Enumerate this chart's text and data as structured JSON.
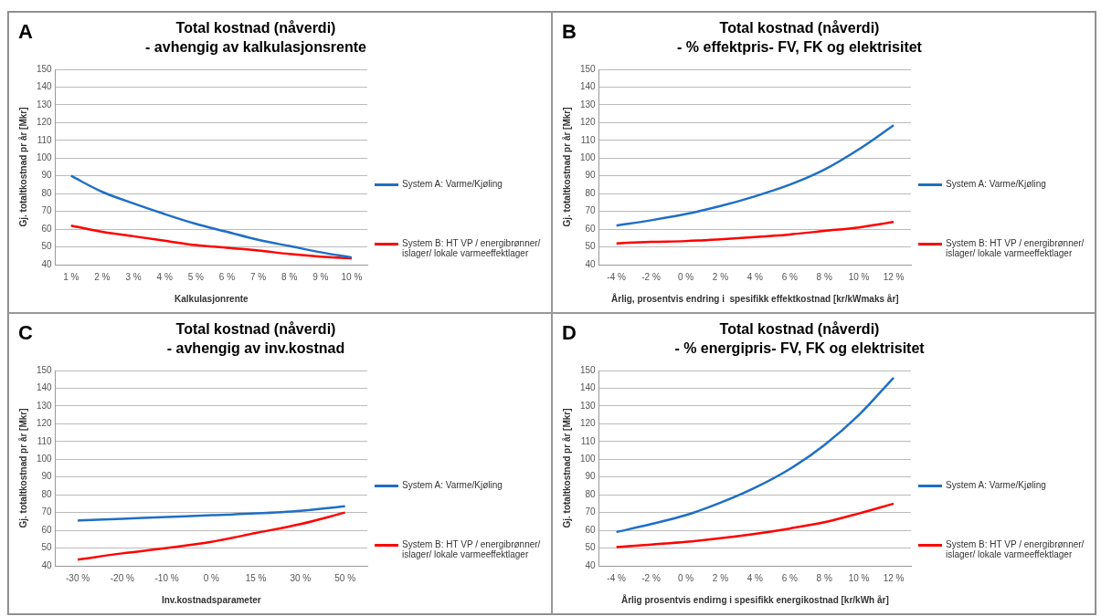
{
  "chart_data": [
    {
      "type": "line",
      "title": "Total kostnad (nåverdi)",
      "subtitle": "- avhengig av kalkulasjonsrente",
      "annotations": [
        "A"
      ],
      "xlabel": "Kalkulasjonrente",
      "ylabel": "Gj. totaltkostnad pr år [Mkr]",
      "categories": [
        "1 %",
        "2 %",
        "3 %",
        "4 %",
        "5 %",
        "6 %",
        "7 %",
        "8 %",
        "9 %",
        "10 %"
      ],
      "ylim": [
        40,
        150
      ],
      "yticks": [
        40,
        50,
        60,
        70,
        80,
        90,
        100,
        110,
        120,
        130,
        140,
        150
      ],
      "grid": "y",
      "legend": "right",
      "marker": "none",
      "series": [
        {
          "name": "System A: Varme/Kjøling",
          "color": "#1f6fc5",
          "values": [
            90,
            81,
            74.5,
            68.5,
            63,
            58.5,
            54,
            50.5,
            47,
            44
          ]
        },
        {
          "name": "System B: HT VP / energibrønner/ islager/ lokale varmeeffektlager",
          "color": "#ff0000",
          "values": [
            62,
            58.5,
            56,
            53.5,
            51,
            49.5,
            48,
            46,
            44.5,
            43.5
          ]
        }
      ]
    },
    {
      "type": "line",
      "title": "Total kostnad (nåverdi)",
      "subtitle": "- % effektpris- FV, FK og elektrisitet",
      "annotations": [
        "B"
      ],
      "xlabel": "Årlig, prosentvis endring i  spesifikk effektkostnad [kr/kWmaks år]",
      "ylabel": "Gj. totaltkostnad pr år [Mkr]",
      "categories": [
        "-4 %",
        "-2 %",
        "0 %",
        "2 %",
        "4 %",
        "6 %",
        "8 %",
        "10 %",
        "12 %"
      ],
      "ylim": [
        40,
        150
      ],
      "yticks": [
        40,
        50,
        60,
        70,
        80,
        90,
        100,
        110,
        120,
        130,
        140,
        150
      ],
      "grid": "y",
      "legend": "right",
      "marker": "none",
      "series": [
        {
          "name": "System A: Varme/Kjøling",
          "color": "#1f6fc5",
          "values": [
            62,
            65,
            68.5,
            73,
            78.5,
            85,
            93.5,
            105,
            118.5
          ]
        },
        {
          "name": "System B: HT VP / energibrønner/ islager/ lokale varmeeffektlager",
          "color": "#ff0000",
          "values": [
            52,
            52.8,
            53.3,
            54.3,
            55.5,
            57,
            59,
            61,
            64
          ]
        }
      ]
    },
    {
      "type": "line",
      "title": "Total kostnad (nåverdi)",
      "subtitle": "- avhengig av inv.kostnad",
      "annotations": [
        "C"
      ],
      "xlabel": "Inv.kostnadsparameter",
      "ylabel": "Gj. totaltkostnad pr år [Mkr]",
      "categories": [
        "-30 %",
        "-20 %",
        "-10 %",
        "0 %",
        "15 %",
        "30 %",
        "50 %"
      ],
      "ylim": [
        40,
        150
      ],
      "yticks": [
        40,
        50,
        60,
        70,
        80,
        90,
        100,
        110,
        120,
        130,
        140,
        150
      ],
      "grid": "y",
      "legend": "right",
      "marker": "none",
      "series": [
        {
          "name": "System A: Varme/Kjøling",
          "color": "#1f6fc5",
          "values": [
            65.5,
            66.5,
            67.5,
            68.5,
            69.5,
            71,
            73.5
          ]
        },
        {
          "name": "System B: HT VP / energibrønner/ islager/ lokale varmeeffektlager",
          "color": "#ff0000",
          "values": [
            43.5,
            47,
            50,
            53.5,
            58.5,
            63.5,
            70
          ]
        }
      ]
    },
    {
      "type": "line",
      "title": "Total kostnad (nåverdi)",
      "subtitle": "- % energipris- FV, FK og elektrisitet",
      "annotations": [
        "D"
      ],
      "xlabel": "Årlig prosentvis endirng i spesifikk energikostnad [kr/kWh år]",
      "ylabel": "Gj. totaltkostnad pr år [Mkr]",
      "categories": [
        "-4 %",
        "-2 %",
        "0 %",
        "2 %",
        "4 %",
        "6 %",
        "8 %",
        "10 %",
        "12 %"
      ],
      "ylim": [
        40,
        150
      ],
      "yticks": [
        40,
        50,
        60,
        70,
        80,
        90,
        100,
        110,
        120,
        130,
        140,
        150
      ],
      "grid": "y",
      "legend": "right",
      "marker": "none",
      "series": [
        {
          "name": "System A: Varme/Kjøling",
          "color": "#1f6fc5",
          "values": [
            59,
            63.5,
            68.5,
            75.5,
            84,
            94.5,
            108,
            125,
            146
          ]
        },
        {
          "name": "System B: HT VP / energibrønner/ islager/ lokale varmeeffektlager",
          "color": "#ff0000",
          "values": [
            50.5,
            52,
            53.5,
            55.5,
            58,
            61,
            64.5,
            69.5,
            75
          ]
        }
      ]
    }
  ]
}
